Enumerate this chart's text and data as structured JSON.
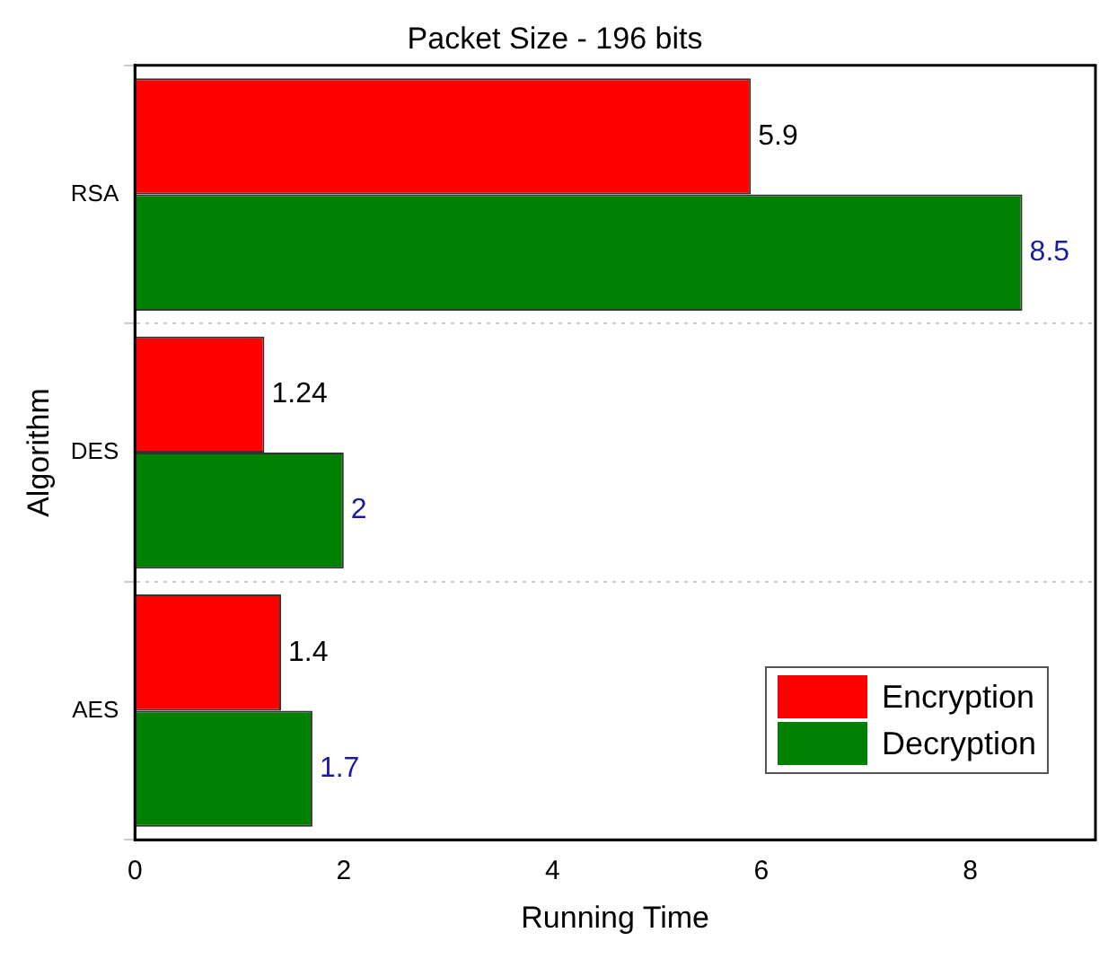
{
  "chart_data": {
    "type": "bar",
    "orientation": "horizontal",
    "title": "Packet Size - 196 bits",
    "xlabel": "Running Time",
    "ylabel": "Algorithm",
    "categories": [
      "RSA",
      "DES",
      "AES"
    ],
    "series": [
      {
        "name": "Encryption",
        "color": "#ff0000",
        "values": [
          5.9,
          1.24,
          1.4
        ]
      },
      {
        "name": "Decryption",
        "color": "#008000",
        "values": [
          8.5,
          2,
          1.7
        ]
      }
    ],
    "xlim": [
      0,
      9.2
    ],
    "xticks": [
      0,
      2,
      4,
      6,
      8
    ],
    "grid": "y",
    "legend": "bottom right",
    "data_labels": true
  }
}
